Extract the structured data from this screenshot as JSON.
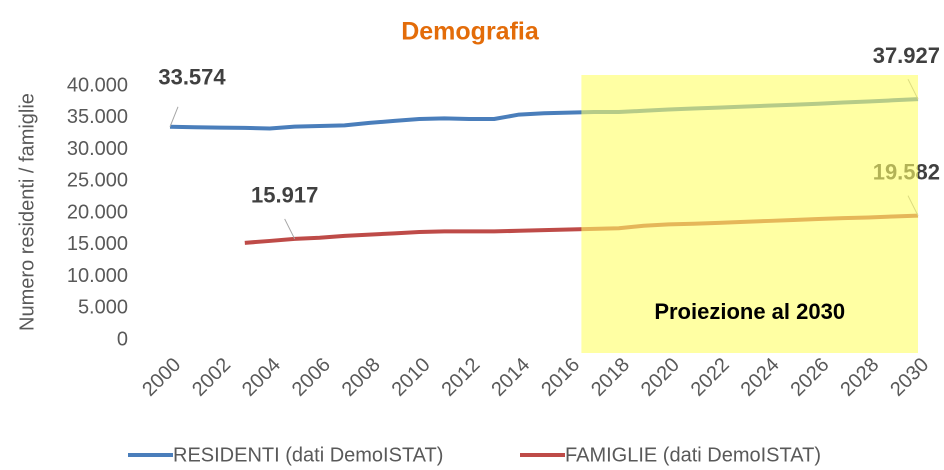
{
  "chart_data": {
    "type": "line",
    "title": "Demografia",
    "y_label": "Numero residenti / famiglie",
    "x": [
      2000,
      2001,
      2002,
      2003,
      2004,
      2005,
      2006,
      2007,
      2008,
      2009,
      2010,
      2011,
      2012,
      2013,
      2014,
      2015,
      2016,
      2017,
      2018,
      2019,
      2020,
      2021,
      2022,
      2023,
      2024,
      2025,
      2026,
      2027,
      2028,
      2029,
      2030
    ],
    "xlim": [
      2000,
      2030
    ],
    "xticks": [
      2000,
      2002,
      2004,
      2006,
      2008,
      2010,
      2012,
      2014,
      2016,
      2018,
      2020,
      2022,
      2024,
      2026,
      2028,
      2030
    ],
    "ylim": [
      0,
      40000
    ],
    "yticks": [
      0,
      {
        "value": 5000,
        "label": "5.000"
      },
      {
        "value": 10000,
        "label": "10.000"
      },
      {
        "value": 15000,
        "label": "15.000"
      },
      {
        "value": 20000,
        "label": "20.000"
      },
      {
        "value": 25000,
        "label": "25.000"
      },
      {
        "value": 30000,
        "label": "30.000"
      },
      {
        "value": 35000,
        "label": "35.000"
      },
      {
        "value": 40000,
        "label": "40.000"
      }
    ],
    "grid": false,
    "legend": "bottom",
    "highlight": {
      "from": 2016.5,
      "to": 2030,
      "label": "Proiezione al 2030",
      "color": "#ffff66"
    },
    "series": [
      {
        "name": "RESIDENTI (dati DemoISTAT)",
        "color": "#4a7ebb",
        "values": [
          33574,
          33500,
          33450,
          33400,
          33300,
          33600,
          33700,
          33800,
          34200,
          34500,
          34800,
          34900,
          34800,
          34800,
          35500,
          35700,
          35800,
          35900,
          35900,
          36100,
          36300,
          36450,
          36600,
          36750,
          36900,
          37050,
          37200,
          37400,
          37550,
          37750,
          37927
        ],
        "value_labels": [
          "33.574",
          null,
          null,
          null,
          null,
          null,
          null,
          null,
          null,
          null,
          null,
          null,
          null,
          null,
          null,
          null,
          null,
          null,
          null,
          null,
          null,
          null,
          null,
          null,
          null,
          null,
          null,
          null,
          null,
          null,
          "37.927"
        ]
      },
      {
        "name": "FAMIGLIE (dati DemoISTAT)",
        "color": "#be4b48",
        "values": [
          null,
          null,
          null,
          15300,
          15600,
          15917,
          16100,
          16400,
          16600,
          16800,
          17000,
          17100,
          17100,
          17100,
          17200,
          17300,
          17400,
          17500,
          17600,
          18000,
          18200,
          18300,
          18450,
          18600,
          18750,
          18900,
          19050,
          19200,
          19300,
          19450,
          19582
        ],
        "value_labels": [
          null,
          null,
          null,
          null,
          null,
          "15.917",
          null,
          null,
          null,
          null,
          null,
          null,
          null,
          null,
          null,
          null,
          null,
          null,
          null,
          null,
          null,
          null,
          null,
          null,
          null,
          null,
          null,
          null,
          null,
          null,
          "19.582"
        ]
      }
    ]
  }
}
